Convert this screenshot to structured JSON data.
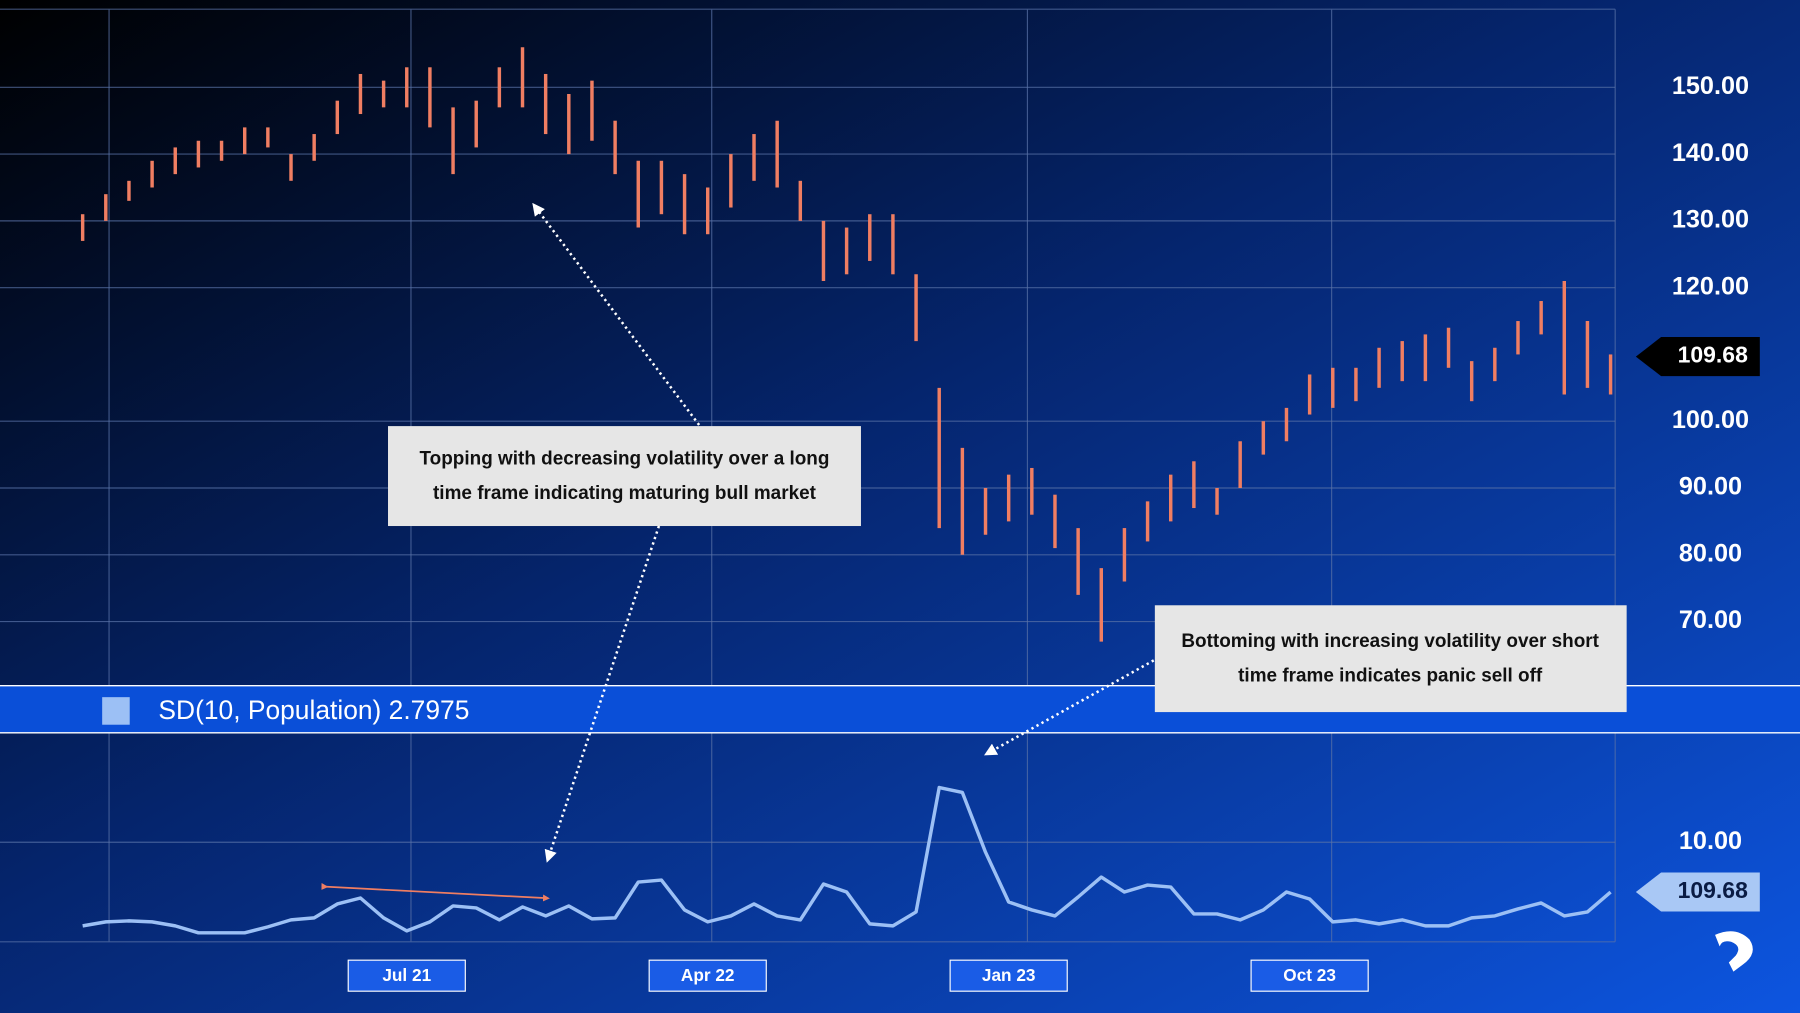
{
  "chart_data": [
    {
      "type": "hilo",
      "color": "#f07e62",
      "low": [
        127,
        130,
        133,
        135,
        137,
        138,
        139,
        140,
        141,
        136,
        139,
        143,
        146,
        147,
        147,
        144,
        137,
        141,
        147,
        147,
        143,
        140,
        142,
        137,
        129,
        131,
        128,
        128,
        132,
        136,
        135,
        130,
        121,
        122,
        124,
        122,
        112,
        84,
        80,
        83,
        85,
        86,
        81,
        74,
        67,
        76,
        82,
        85,
        87,
        86,
        90,
        95,
        97,
        101,
        102,
        103,
        105,
        106,
        106,
        108,
        103,
        106,
        110,
        113,
        104,
        105,
        104
      ],
      "high": [
        131,
        134,
        136,
        139,
        141,
        142,
        142,
        144,
        144,
        140,
        143,
        148,
        152,
        151,
        153,
        153,
        147,
        148,
        153,
        156,
        152,
        149,
        151,
        145,
        139,
        139,
        137,
        135,
        140,
        143,
        145,
        136,
        130,
        129,
        131,
        131,
        122,
        105,
        96,
        90,
        92,
        93,
        89,
        84,
        78,
        84,
        88,
        92,
        94,
        90,
        97,
        100,
        102,
        107,
        108,
        108,
        111,
        112,
        113,
        114,
        109,
        111,
        115,
        118,
        121,
        115,
        110
      ],
      "ylim": [
        60.4,
        161.7
      ],
      "yticks": [
        {
          "value": 70,
          "label": "70.00"
        },
        {
          "value": 80,
          "label": "80.00"
        },
        {
          "value": 90,
          "label": "90.00"
        },
        {
          "value": 100,
          "label": "100.00"
        },
        {
          "value": 120,
          "label": "120.00"
        },
        {
          "value": 130,
          "label": "130.00"
        },
        {
          "value": 140,
          "label": "140.00"
        },
        {
          "value": 150,
          "label": "150.00"
        }
      ],
      "last_price": 109.68,
      "grid": true
    },
    {
      "type": "line",
      "color": "#9cc0f5",
      "legend": "SD(10, Population) 2.7975",
      "categories": [
        null,
        null,
        null,
        null,
        null,
        null,
        null,
        null,
        null,
        null,
        null,
        null,
        null,
        null,
        "Jul 21",
        null,
        null,
        null,
        null,
        null,
        null,
        null,
        null,
        null,
        null,
        null,
        null,
        "Apr 22",
        null,
        null,
        null,
        null,
        null,
        null,
        null,
        null,
        null,
        null,
        null,
        null,
        "Jan 23",
        null,
        null,
        null,
        null,
        null,
        null,
        null,
        null,
        null,
        null,
        null,
        null,
        "Oct 23",
        null,
        null,
        null,
        null,
        null,
        null,
        null,
        null,
        null,
        null,
        null,
        null,
        null
      ],
      "values": [
        1.6,
        2.0,
        2.1,
        2.0,
        1.6,
        0.9,
        0.9,
        0.9,
        1.5,
        2.2,
        2.4,
        3.8,
        4.4,
        2.4,
        1.1,
        2.0,
        3.6,
        3.4,
        2.2,
        3.5,
        2.6,
        3.6,
        2.3,
        2.4,
        6.0,
        6.2,
        3.2,
        2.0,
        2.6,
        3.8,
        2.6,
        2.2,
        5.8,
        5.0,
        1.8,
        1.6,
        3.0,
        15.5,
        15.0,
        9.0,
        4.0,
        3.2,
        2.6,
        4.5,
        6.5,
        5.0,
        5.7,
        5.5,
        2.8,
        2.8,
        2.2,
        3.2,
        5.0,
        4.3,
        2.0,
        2.2,
        1.8,
        2.2,
        1.6,
        1.6,
        2.4,
        2.6,
        3.3,
        3.9,
        2.6,
        3.0,
        5.0
      ],
      "ylim": [
        0,
        21
      ],
      "yticks": [
        {
          "value": 10,
          "label": "10.00"
        }
      ],
      "marker_label": "109.68"
    }
  ],
  "annotations": [
    {
      "lines": [
        "Topping with decreasing volatility over a long",
        "time frame indicating maturing bull market"
      ]
    },
    {
      "lines": [
        "Bottoming with increasing volatility over short",
        "time frame indicates panic sell off"
      ]
    }
  ]
}
